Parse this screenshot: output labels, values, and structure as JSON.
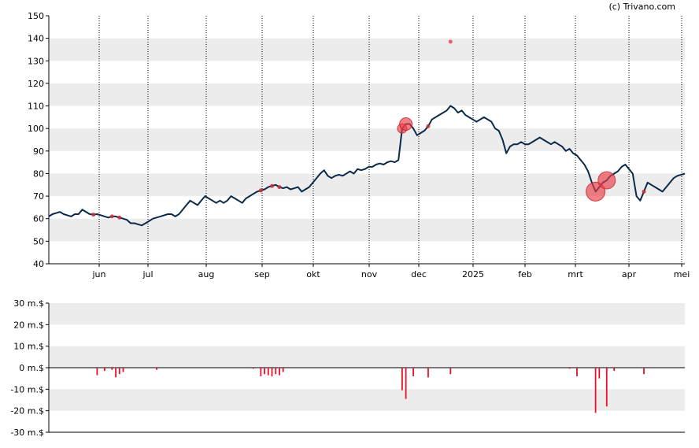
{
  "copyright": "(c) Trivano.com",
  "chart_data": [
    {
      "type": "line",
      "title": "",
      "xlabel": "",
      "ylabel": "",
      "ylim": [
        40,
        150
      ],
      "yticks": [
        40,
        50,
        60,
        70,
        80,
        90,
        100,
        110,
        120,
        130,
        140,
        150
      ],
      "x_tick_labels": [
        "jun",
        "jul",
        "aug",
        "sep",
        "okt",
        "nov",
        "dec",
        "2025",
        "feb",
        "mrt",
        "apr",
        "mei"
      ],
      "grid": "alternating horizontal bands, dotted vertical month lines",
      "series": [
        {
          "values": [
            61,
            62,
            62.5,
            63,
            62,
            61.5,
            61,
            62,
            62,
            64,
            63,
            62,
            61.8,
            62,
            61.5,
            61,
            60.5,
            61,
            61,
            60.5,
            60,
            59.5,
            58,
            58,
            57.5,
            57,
            58,
            59,
            60,
            60.5,
            61,
            61.5,
            62,
            62,
            61,
            62,
            64,
            66,
            68,
            67,
            66,
            68,
            70,
            69,
            68,
            67,
            68,
            67,
            68,
            70,
            69,
            68,
            67,
            69,
            70,
            71,
            72,
            72.5,
            73,
            74,
            74.5,
            75,
            74,
            73.5,
            74,
            73,
            73.5,
            74,
            72,
            73,
            74,
            76,
            78,
            80,
            81.5,
            79,
            78,
            79,
            79.5,
            79,
            80,
            81,
            80,
            82,
            81.5,
            82,
            83,
            83,
            84,
            84.5,
            84,
            85,
            85.5,
            85,
            86,
            100,
            102,
            102,
            100,
            97,
            98,
            99,
            101,
            104,
            105,
            106,
            107,
            108,
            110,
            109,
            107,
            108,
            106,
            105,
            104,
            103,
            104,
            105,
            104,
            103,
            100,
            99,
            95,
            89,
            92,
            93,
            93,
            94,
            93,
            93,
            94,
            95,
            96,
            95,
            94,
            93,
            94,
            93,
            92,
            90,
            91,
            89,
            88,
            86,
            84,
            81,
            76,
            72,
            74,
            76,
            77,
            79,
            80,
            81,
            83,
            84,
            82,
            80,
            70,
            68,
            72,
            76,
            75,
            74,
            73,
            72,
            74,
            76,
            78,
            79,
            79.5,
            80
          ]
        }
      ],
      "annotations": [
        {
          "label": "isolated point",
          "x_index": 108,
          "y": 138.5
        }
      ]
    },
    {
      "type": "bar",
      "title": "",
      "xlabel": "",
      "ylabel": "",
      "ylim": [
        -30,
        30
      ],
      "yticks": [
        "30 m.$",
        "20 m.$",
        "10 m.$",
        "0 m.$",
        "-10 m.$",
        "-20 m.$",
        "-30 m.$"
      ],
      "x_tick_labels": [
        "jun",
        "jul",
        "aug",
        "sep",
        "okt",
        "nov",
        "dec",
        "2025",
        "feb",
        "mrt",
        "apr",
        "mei"
      ],
      "bars": [
        {
          "x_index": 13,
          "value": -3.5
        },
        {
          "x_index": 15,
          "value": -1.5
        },
        {
          "x_index": 17,
          "value": -1
        },
        {
          "x_index": 18,
          "value": -4.5
        },
        {
          "x_index": 19,
          "value": -3
        },
        {
          "x_index": 20,
          "value": -2
        },
        {
          "x_index": 29,
          "value": -1
        },
        {
          "x_index": 55,
          "value": -0.5
        },
        {
          "x_index": 57,
          "value": -4
        },
        {
          "x_index": 58,
          "value": -3
        },
        {
          "x_index": 59,
          "value": -3.5
        },
        {
          "x_index": 60,
          "value": -4
        },
        {
          "x_index": 61,
          "value": -3
        },
        {
          "x_index": 62,
          "value": -3.5
        },
        {
          "x_index": 63,
          "value": -2
        },
        {
          "x_index": 95,
          "value": -10.5
        },
        {
          "x_index": 96,
          "value": -14.5
        },
        {
          "x_index": 98,
          "value": -4
        },
        {
          "x_index": 102,
          "value": -4.5
        },
        {
          "x_index": 108,
          "value": -3
        },
        {
          "x_index": 140,
          "value": -0.5
        },
        {
          "x_index": 142,
          "value": -4
        },
        {
          "x_index": 147,
          "value": -21
        },
        {
          "x_index": 148,
          "value": -5
        },
        {
          "x_index": 150,
          "value": -18
        },
        {
          "x_index": 152,
          "value": -1.5
        },
        {
          "x_index": 160,
          "value": -3
        }
      ]
    }
  ]
}
